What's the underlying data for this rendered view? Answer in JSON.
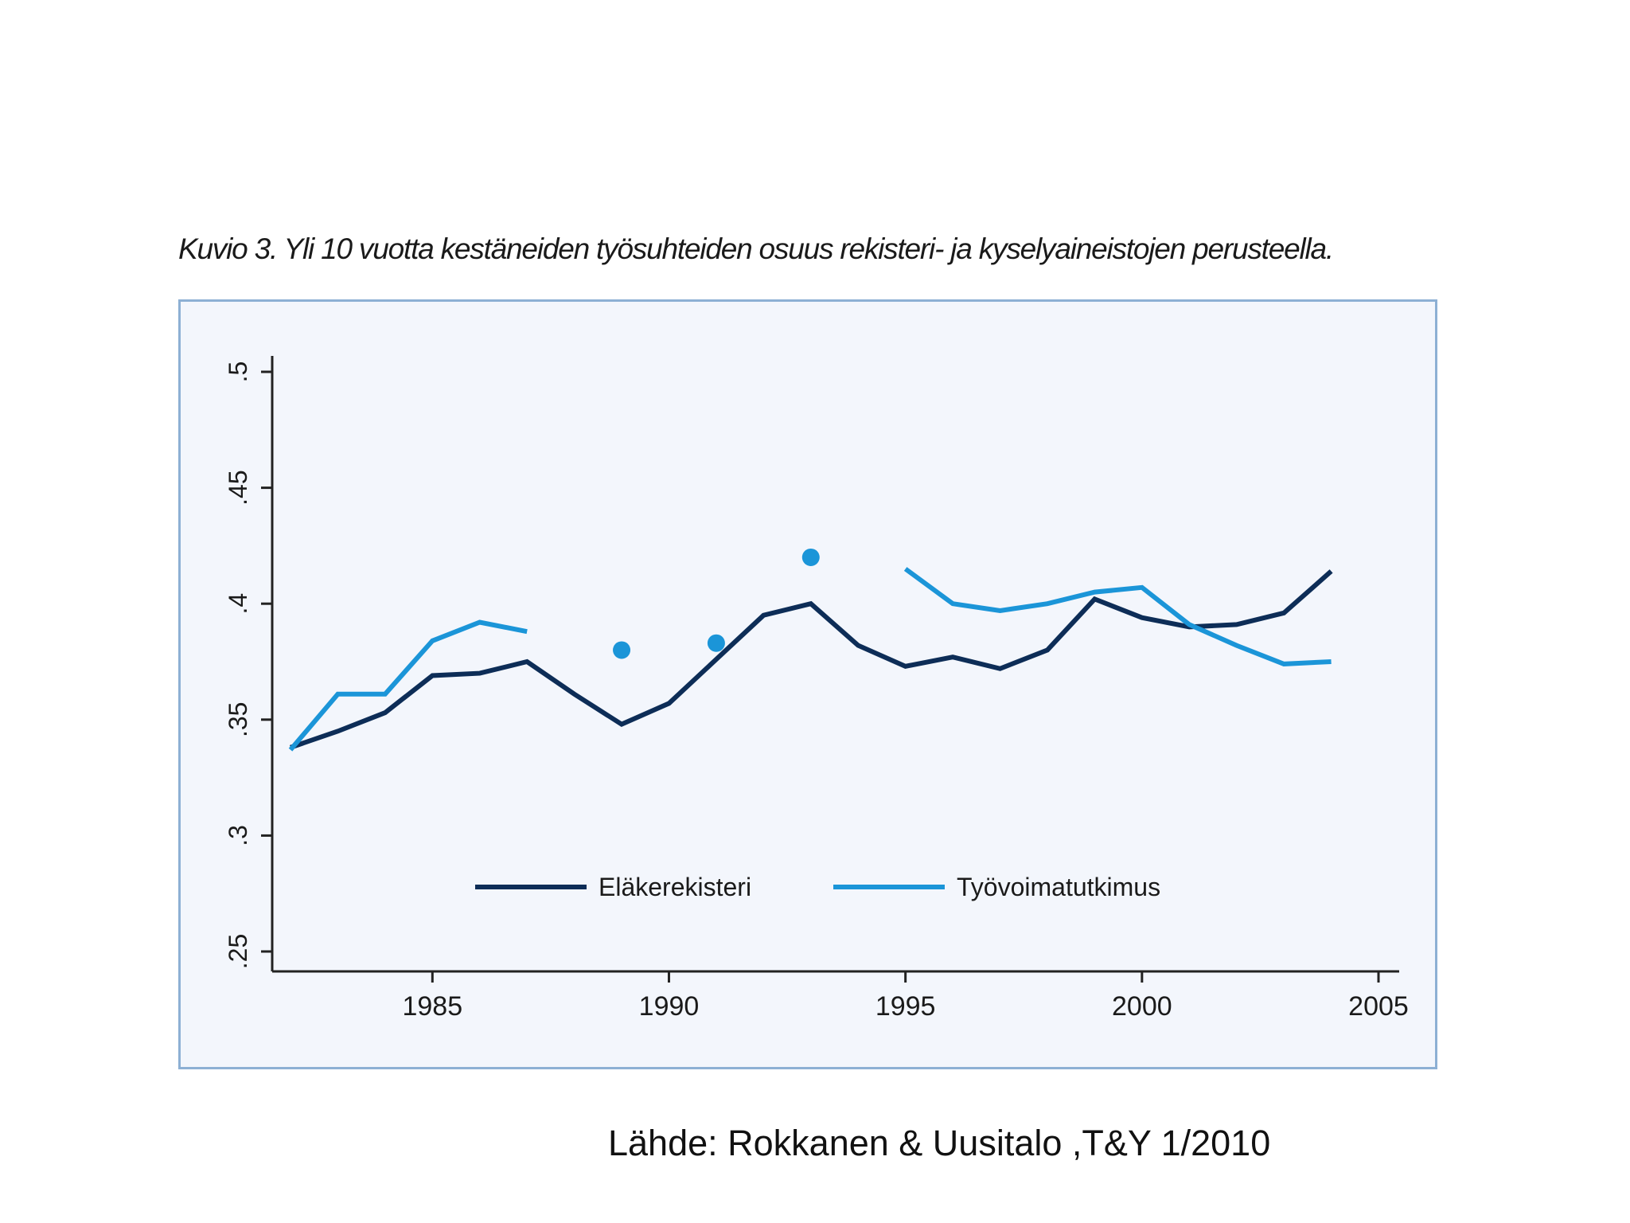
{
  "slide": {
    "source": "Lähde: Rokkanen & Uusitalo ,T&Y 1/2010"
  },
  "chart_data": {
    "type": "line",
    "title": "Kuvio 3. Yli 10 vuotta kestäneiden työsuhteiden osuus rekisteri- ja kyselyaineistojen perusteella.",
    "xlabel": "",
    "ylabel": "",
    "xlim": [
      1982,
      2005
    ],
    "ylim": [
      0.25,
      0.5
    ],
    "x_ticks": [
      1985,
      1990,
      1995,
      2000,
      2005
    ],
    "x_tick_labels": [
      "1985",
      "1990",
      "1995",
      "2000",
      "2005"
    ],
    "y_ticks": [
      0.25,
      0.3,
      0.35,
      0.4,
      0.45,
      0.5
    ],
    "y_tick_labels": [
      ".25",
      ".3",
      ".35",
      ".4",
      ".45",
      ".5"
    ],
    "grid": false,
    "legend_position": "bottom-inside",
    "series": [
      {
        "name": "Eläkerekisteri",
        "color": "#0d2d57",
        "x": [
          1982,
          1983,
          1984,
          1985,
          1986,
          1987,
          1988,
          1989,
          1990,
          1991,
          1992,
          1993,
          1994,
          1995,
          1996,
          1997,
          1998,
          1999,
          2000,
          2001,
          2002,
          2003,
          2004
        ],
        "y": [
          0.338,
          0.345,
          0.353,
          0.369,
          0.37,
          0.375,
          0.361,
          0.348,
          0.357,
          0.376,
          0.395,
          0.4,
          0.382,
          0.373,
          0.377,
          0.372,
          0.38,
          0.402,
          0.394,
          0.39,
          0.391,
          0.396,
          0.414
        ]
      },
      {
        "name": "Työvoimatutkimus",
        "color": "#1b95d8",
        "x": [
          1982,
          1983,
          1984,
          1985,
          1986,
          1987,
          1988,
          1989,
          1990,
          1991,
          1992,
          1993,
          1994,
          1995,
          1996,
          1997,
          1998,
          1999,
          2000,
          2001,
          2002,
          2003,
          2004
        ],
        "y": [
          0.337,
          0.361,
          0.361,
          0.384,
          0.392,
          0.388,
          null,
          0.38,
          null,
          0.383,
          null,
          0.42,
          null,
          0.415,
          0.4,
          0.397,
          0.4,
          0.405,
          0.407,
          0.391,
          0.382,
          0.374,
          0.375
        ]
      }
    ]
  }
}
